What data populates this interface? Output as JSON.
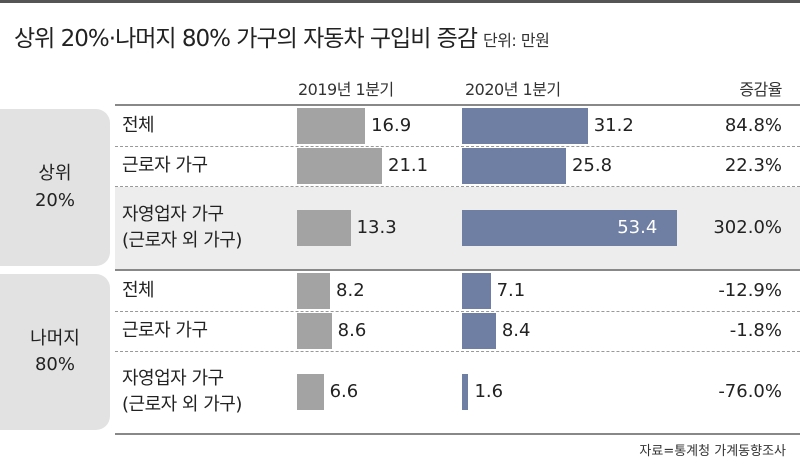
{
  "chart_data": {
    "type": "bar",
    "title": "상위 20%·나머지 80% 가구의 자동차 구입비 증감",
    "unit": "단위: 만원",
    "columns": [
      "2019년 1분기",
      "2020년 1분기",
      "증감율"
    ],
    "colors": {
      "y2019": "#a3a3a3",
      "y2020": "#6f7fa3"
    },
    "groups": [
      {
        "name": [
          "상위",
          "20%"
        ],
        "rows": [
          {
            "label": [
              "전체"
            ],
            "v2019": 16.9,
            "v2020": 31.2,
            "change": "84.8%"
          },
          {
            "label": [
              "근로자 가구"
            ],
            "v2019": 21.1,
            "v2020": 25.8,
            "change": "22.3%"
          },
          {
            "label": [
              "자영업자 가구",
              "(근로자 외 가구)"
            ],
            "v2019": 13.3,
            "v2020": 53.4,
            "change": "302.0%",
            "highlight": true
          }
        ]
      },
      {
        "name": [
          "나머지",
          "80%"
        ],
        "rows": [
          {
            "label": [
              "전체"
            ],
            "v2019": 8.2,
            "v2020": 7.1,
            "change": "-12.9%"
          },
          {
            "label": [
              "근로자 가구"
            ],
            "v2019": 8.6,
            "v2020": 8.4,
            "change": "-1.8%"
          },
          {
            "label": [
              "자영업자 가구",
              "(근로자 외 가구)"
            ],
            "v2019": 6.6,
            "v2020": 1.6,
            "change": "-76.0%"
          }
        ]
      }
    ],
    "source": "자료=통계청 가계동향조사"
  }
}
